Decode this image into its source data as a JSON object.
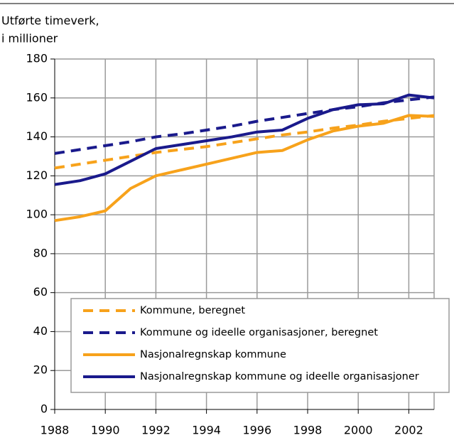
{
  "chart_data": {
    "type": "line",
    "ylabel": [
      "Utførte timeverk,",
      "i millioner"
    ],
    "x": [
      1988,
      1989,
      1990,
      1991,
      1992,
      1993,
      1994,
      1995,
      1996,
      1997,
      1998,
      1999,
      2000,
      2001,
      2002,
      2003
    ],
    "series": [
      {
        "name": "Kommune, beregnet",
        "color": "#f7a21b",
        "dashed": true,
        "values": [
          124,
          126,
          128,
          130,
          132,
          133.5,
          135,
          137,
          139,
          141,
          142.5,
          144.5,
          146,
          148,
          149.5,
          151
        ]
      },
      {
        "name": "Kommune og ideelle organisasjoner, beregnet",
        "color": "#1a1a8c",
        "dashed": true,
        "values": [
          131.5,
          133.5,
          135.5,
          137.5,
          140,
          141.5,
          143.5,
          145.5,
          148,
          150,
          152,
          154,
          155.5,
          157.5,
          159,
          160.5
        ]
      },
      {
        "name": "Nasjonalregnskap kommune",
        "color": "#f7a21b",
        "dashed": false,
        "values": [
          97,
          99,
          102,
          113.5,
          120,
          123,
          126,
          129,
          132,
          133,
          138.5,
          143,
          145.5,
          147,
          151,
          150.5
        ]
      },
      {
        "name": "Nasjonalregnskap kommune og ideelle organisasjoner",
        "color": "#1a1a8c",
        "dashed": false,
        "values": [
          115.5,
          117.5,
          121,
          127.5,
          134,
          136,
          138,
          140,
          142.5,
          143.5,
          149.5,
          154,
          156.5,
          157,
          161.5,
          160
        ]
      }
    ],
    "xlim": [
      1988,
      2003
    ],
    "xticks": [
      1988,
      1990,
      1992,
      1994,
      1996,
      1998,
      2000,
      2002
    ],
    "ylim": [
      0,
      180
    ],
    "yticks": [
      0,
      20,
      40,
      60,
      80,
      100,
      120,
      140,
      160,
      180
    ],
    "grid": true,
    "legend": "lower right"
  }
}
